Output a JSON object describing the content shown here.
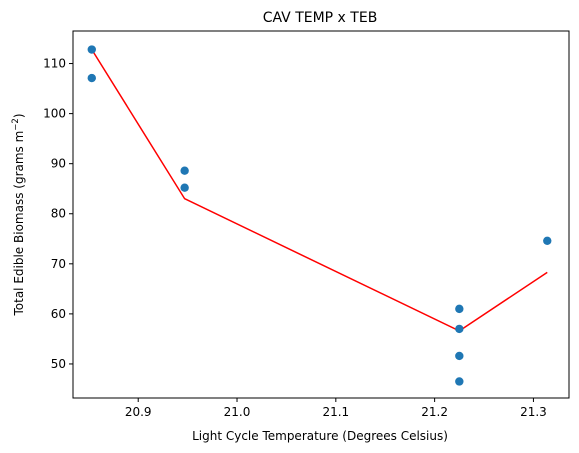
{
  "chart_data": {
    "type": "scatter",
    "title": "CAV TEMP x TEB",
    "xlabel": "Light Cycle Temperature (Degrees Celsius)",
    "ylabel_main": "Total Edible Biomass (grams m",
    "ylabel_sup": "−2",
    "ylabel_close": ")",
    "xlim": [
      20.834,
      21.336
    ],
    "ylim": [
      43.2,
      116.5
    ],
    "xticks": [
      20.9,
      21.0,
      21.1,
      21.2,
      21.3
    ],
    "xtick_labels": [
      "20.9",
      "21.0",
      "21.1",
      "21.2",
      "21.3"
    ],
    "yticks": [
      50,
      60,
      70,
      80,
      90,
      100,
      110
    ],
    "ytick_labels": [
      "50",
      "60",
      "70",
      "80",
      "90",
      "100",
      "110"
    ],
    "grid": false,
    "series": [
      {
        "kind": "scatter",
        "color": "#1f77b4",
        "points": [
          {
            "x": 20.853,
            "y": 112.8
          },
          {
            "x": 20.853,
            "y": 107.1
          },
          {
            "x": 20.947,
            "y": 88.6
          },
          {
            "x": 20.947,
            "y": 85.2
          },
          {
            "x": 21.225,
            "y": 61.0
          },
          {
            "x": 21.225,
            "y": 57.0
          },
          {
            "x": 21.225,
            "y": 51.6
          },
          {
            "x": 21.225,
            "y": 46.5
          },
          {
            "x": 21.314,
            "y": 74.6
          }
        ]
      },
      {
        "kind": "line",
        "color": "#ff0000",
        "points": [
          {
            "x": 20.853,
            "y": 112.8
          },
          {
            "x": 20.947,
            "y": 83.0
          },
          {
            "x": 21.225,
            "y": 56.6
          },
          {
            "x": 21.314,
            "y": 68.3
          }
        ]
      }
    ]
  }
}
